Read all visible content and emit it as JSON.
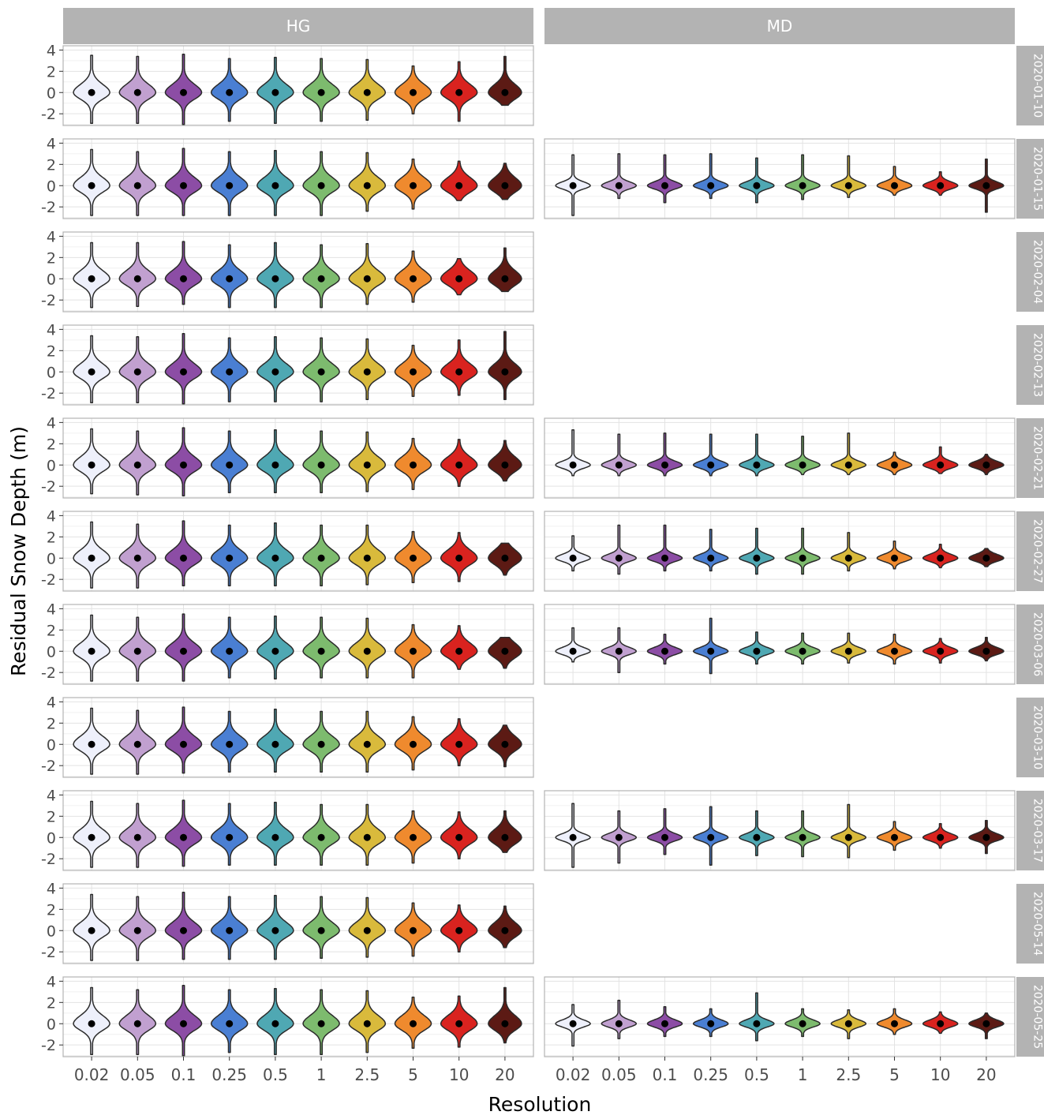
{
  "chart_data": {
    "type": "violin",
    "xlabel": "Resolution",
    "ylabel": "Residual Snow Depth (m)",
    "ylim": [
      -3.1,
      4.4
    ],
    "y_ticks": [
      -2,
      0,
      2,
      4
    ],
    "categories": [
      "0.02",
      "0.05",
      "0.1",
      "0.25",
      "0.5",
      "1",
      "2.5",
      "5",
      "10",
      "20"
    ],
    "category_colors": [
      "#eef0fb",
      "#c1a0d0",
      "#8c4da5",
      "#4a7fd3",
      "#4fa8b3",
      "#7dbb6e",
      "#d9ba3c",
      "#ef8a2e",
      "#d9231f",
      "#5c1a14"
    ],
    "column_facets": [
      "HG",
      "MD"
    ],
    "row_facets": [
      "2020-01-10",
      "2020-01-15",
      "2020-02-04",
      "2020-02-13",
      "2020-02-21",
      "2020-02-27",
      "2020-03-06",
      "2020-03-10",
      "2020-03-17",
      "2020-05-14",
      "2020-05-25"
    ],
    "md_present": [
      false,
      true,
      false,
      false,
      true,
      true,
      true,
      false,
      true,
      false,
      true
    ],
    "hg_ranges": [
      [
        [
          -2.9,
          3.5
        ],
        [
          -2.9,
          3.4
        ],
        [
          -3.0,
          3.6
        ],
        [
          -2.7,
          3.2
        ],
        [
          -2.9,
          3.3
        ],
        [
          -2.7,
          3.2
        ],
        [
          -2.6,
          3.1
        ],
        [
          -2.0,
          2.5
        ],
        [
          -2.7,
          2.9
        ],
        [
          -1.2,
          3.4
        ]
      ],
      [
        [
          -2.8,
          3.4
        ],
        [
          -2.8,
          3.2
        ],
        [
          -2.8,
          3.5
        ],
        [
          -2.8,
          3.2
        ],
        [
          -2.8,
          3.3
        ],
        [
          -2.8,
          3.2
        ],
        [
          -2.4,
          3.1
        ],
        [
          -2.2,
          2.5
        ],
        [
          -1.4,
          2.3
        ],
        [
          -1.3,
          2.1
        ]
      ],
      [
        [
          -2.7,
          3.4
        ],
        [
          -2.6,
          3.4
        ],
        [
          -2.4,
          3.5
        ],
        [
          -2.7,
          3.2
        ],
        [
          -2.7,
          3.4
        ],
        [
          -2.7,
          3.2
        ],
        [
          -2.4,
          3.3
        ],
        [
          -2.2,
          2.6
        ],
        [
          -1.5,
          1.9
        ],
        [
          -1.2,
          2.9
        ]
      ],
      [
        [
          -2.9,
          3.4
        ],
        [
          -2.9,
          3.3
        ],
        [
          -3.0,
          3.6
        ],
        [
          -2.8,
          3.2
        ],
        [
          -2.8,
          3.3
        ],
        [
          -2.8,
          3.2
        ],
        [
          -2.6,
          3.1
        ],
        [
          -2.3,
          2.5
        ],
        [
          -2.2,
          3.0
        ],
        [
          -2.6,
          3.8
        ]
      ],
      [
        [
          -2.7,
          3.4
        ],
        [
          -2.8,
          3.2
        ],
        [
          -2.9,
          3.5
        ],
        [
          -2.6,
          3.2
        ],
        [
          -2.6,
          3.3
        ],
        [
          -2.6,
          3.2
        ],
        [
          -2.5,
          3.1
        ],
        [
          -2.3,
          2.5
        ],
        [
          -2.0,
          2.4
        ],
        [
          -1.5,
          2.3
        ]
      ],
      [
        [
          -2.8,
          3.4
        ],
        [
          -2.8,
          3.2
        ],
        [
          -2.6,
          3.5
        ],
        [
          -2.6,
          3.1
        ],
        [
          -2.6,
          3.3
        ],
        [
          -2.6,
          3.1
        ],
        [
          -2.5,
          3.1
        ],
        [
          -2.3,
          2.5
        ],
        [
          -2.2,
          2.4
        ],
        [
          -1.6,
          1.4
        ]
      ],
      [
        [
          -2.8,
          3.4
        ],
        [
          -2.8,
          3.2
        ],
        [
          -2.8,
          3.5
        ],
        [
          -2.5,
          3.2
        ],
        [
          -2.6,
          3.3
        ],
        [
          -2.5,
          3.2
        ],
        [
          -2.5,
          3.1
        ],
        [
          -2.5,
          2.5
        ],
        [
          -1.7,
          2.4
        ],
        [
          -1.6,
          1.3
        ]
      ],
      [
        [
          -2.8,
          3.4
        ],
        [
          -2.8,
          3.2
        ],
        [
          -2.7,
          3.5
        ],
        [
          -2.6,
          3.1
        ],
        [
          -2.6,
          3.3
        ],
        [
          -2.6,
          3.1
        ],
        [
          -2.6,
          3.1
        ],
        [
          -2.4,
          2.6
        ],
        [
          -2.0,
          2.4
        ],
        [
          -2.1,
          1.8
        ]
      ],
      [
        [
          -2.8,
          3.4
        ],
        [
          -2.8,
          3.2
        ],
        [
          -2.7,
          3.5
        ],
        [
          -2.6,
          3.2
        ],
        [
          -2.6,
          3.3
        ],
        [
          -2.6,
          3.1
        ],
        [
          -2.6,
          3.1
        ],
        [
          -2.4,
          2.5
        ],
        [
          -2.0,
          2.4
        ],
        [
          -1.4,
          2.5
        ]
      ],
      [
        [
          -2.8,
          3.4
        ],
        [
          -2.8,
          3.2
        ],
        [
          -2.7,
          3.6
        ],
        [
          -2.7,
          3.2
        ],
        [
          -2.7,
          3.3
        ],
        [
          -2.6,
          3.2
        ],
        [
          -2.5,
          3.1
        ],
        [
          -2.4,
          2.6
        ],
        [
          -2.0,
          2.4
        ],
        [
          -1.6,
          2.3
        ]
      ],
      [
        [
          -2.9,
          3.4
        ],
        [
          -2.9,
          3.2
        ],
        [
          -3.0,
          3.6
        ],
        [
          -2.7,
          3.2
        ],
        [
          -2.9,
          3.3
        ],
        [
          -2.9,
          3.2
        ],
        [
          -2.7,
          3.1
        ],
        [
          -2.3,
          2.5
        ],
        [
          -2.2,
          2.6
        ],
        [
          -1.8,
          3.4
        ]
      ]
    ],
    "md_ranges": [
      null,
      [
        [
          -2.8,
          2.9
        ],
        [
          -1.2,
          3.0
        ],
        [
          -1.6,
          2.9
        ],
        [
          -1.2,
          3.0
        ],
        [
          -1.6,
          2.6
        ],
        [
          -1.3,
          2.9
        ],
        [
          -1.1,
          2.8
        ],
        [
          -0.9,
          1.8
        ],
        [
          -0.9,
          1.3
        ],
        [
          -2.5,
          2.5
        ]
      ],
      null,
      null,
      [
        [
          -1.0,
          3.3
        ],
        [
          -1.0,
          2.9
        ],
        [
          -1.0,
          3.0
        ],
        [
          -1.0,
          2.9
        ],
        [
          -1.0,
          2.9
        ],
        [
          -0.9,
          2.7
        ],
        [
          -0.9,
          3.0
        ],
        [
          -0.9,
          1.2
        ],
        [
          -0.8,
          1.7
        ],
        [
          -0.9,
          1.0
        ]
      ],
      [
        [
          -1.2,
          2.1
        ],
        [
          -1.5,
          3.1
        ],
        [
          -1.2,
          3.1
        ],
        [
          -1.2,
          2.7
        ],
        [
          -1.5,
          2.8
        ],
        [
          -1.5,
          2.8
        ],
        [
          -1.2,
          2.4
        ],
        [
          -1.0,
          1.6
        ],
        [
          -0.9,
          1.3
        ],
        [
          -0.8,
          0.9
        ]
      ],
      [
        [
          -1.0,
          2.2
        ],
        [
          -2.0,
          2.2
        ],
        [
          -1.2,
          1.6
        ],
        [
          -2.1,
          3.1
        ],
        [
          -1.2,
          1.8
        ],
        [
          -1.2,
          1.7
        ],
        [
          -1.1,
          1.7
        ],
        [
          -1.2,
          1.6
        ],
        [
          -1.1,
          1.2
        ],
        [
          -0.9,
          1.3
        ]
      ],
      null,
      [
        [
          -2.8,
          3.2
        ],
        [
          -2.4,
          2.5
        ],
        [
          -1.6,
          2.7
        ],
        [
          -2.6,
          2.9
        ],
        [
          -1.7,
          2.5
        ],
        [
          -1.8,
          2.5
        ],
        [
          -1.9,
          3.1
        ],
        [
          -1.2,
          1.5
        ],
        [
          -1.0,
          1.3
        ],
        [
          -1.5,
          1.6
        ]
      ],
      null,
      [
        [
          -2.1,
          1.8
        ],
        [
          -1.4,
          2.2
        ],
        [
          -1.2,
          1.6
        ],
        [
          -1.2,
          1.4
        ],
        [
          -1.6,
          2.9
        ],
        [
          -1.2,
          1.4
        ],
        [
          -1.4,
          1.3
        ],
        [
          -1.0,
          1.4
        ],
        [
          -0.9,
          1.1
        ],
        [
          -1.4,
          1.0
        ]
      ]
    ],
    "grid": true
  }
}
